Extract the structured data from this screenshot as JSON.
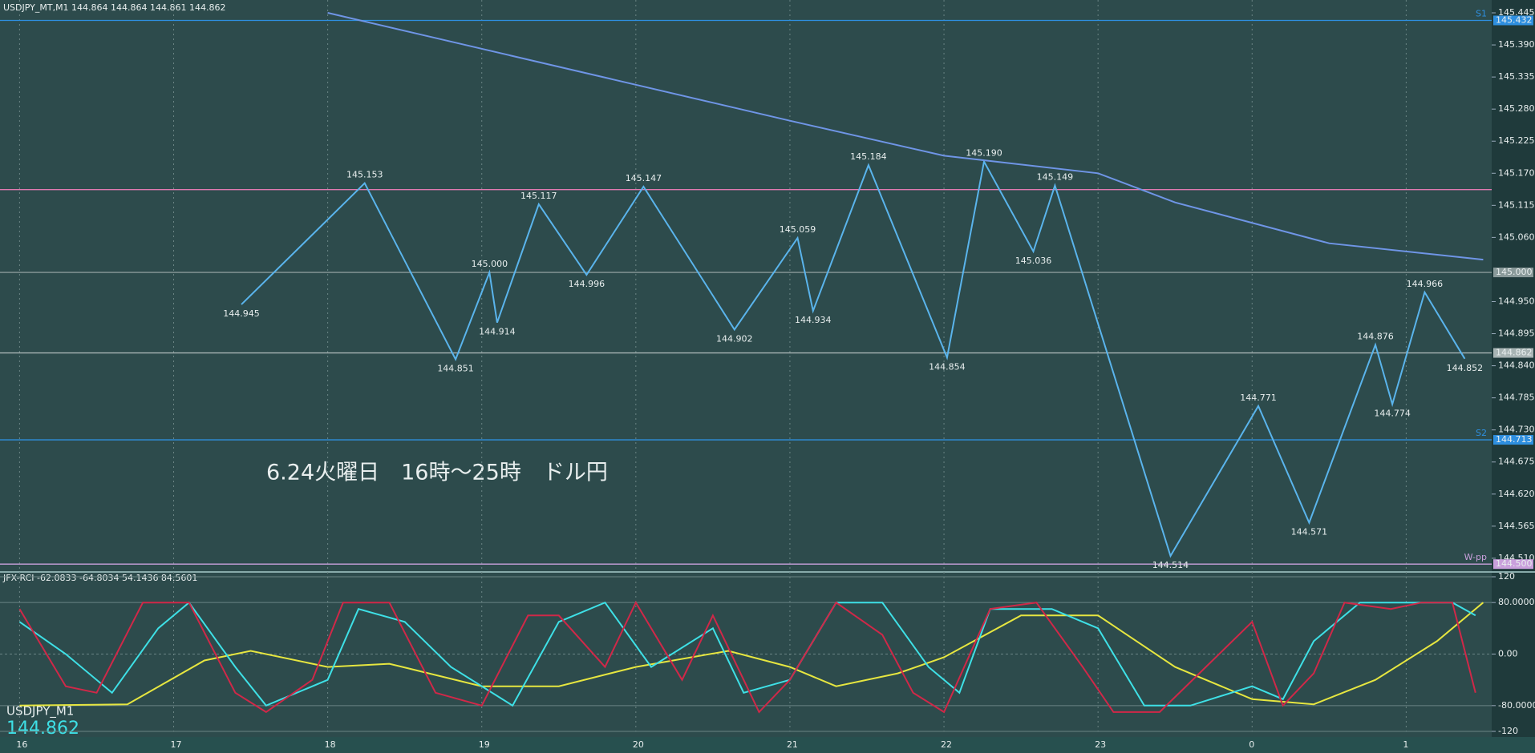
{
  "chart_data": [
    {
      "type": "line",
      "title": "USDJPY_MT,M1  144.864 144.864 144.861 144.862",
      "annotation": "6.24火曜日　16時～25時　ドル円",
      "xlim": [
        15.873,
        25.555
      ],
      "ylim": [
        144.492,
        145.467
      ],
      "xticks": [
        16,
        17,
        18,
        19,
        20,
        21,
        22,
        23,
        {
          "value": 24,
          "label": "0"
        },
        {
          "value": 25,
          "label": "1"
        }
      ],
      "yticks": [
        145.445,
        {
          "value": 145.39,
          "label": "145.390"
        },
        145.335,
        {
          "value": 145.28,
          "label": "145.280"
        },
        145.225,
        {
          "value": 145.17,
          "label": "145.170"
        },
        145.115,
        {
          "value": 145.06,
          "label": "145.060"
        },
        {
          "value": 144.95,
          "label": "144.950"
        },
        144.895,
        {
          "value": 144.84,
          "label": "144.840"
        },
        144.785,
        {
          "value": 144.73,
          "label": "144.730"
        },
        144.675,
        {
          "value": 144.62,
          "label": "144.620"
        },
        144.565,
        {
          "value": 144.51,
          "label": "144.510"
        }
      ],
      "grid": true,
      "series": [
        {
          "color": "#5ab4ec",
          "x": [
            17.44,
            18.24,
            18.83,
            19.05,
            19.1,
            19.37,
            19.68,
            20.05,
            20.64,
            21.05,
            21.15,
            21.51,
            22.02,
            22.26,
            22.58,
            22.72,
            23.47,
            24.04,
            24.37,
            24.8,
            24.91,
            25.12,
            25.38
          ],
          "values": [
            144.945,
            145.153,
            144.851,
            145.0,
            144.914,
            145.117,
            144.996,
            145.147,
            144.902,
            145.059,
            144.934,
            145.184,
            144.854,
            145.19,
            145.036,
            145.149,
            144.514,
            144.771,
            144.571,
            144.876,
            144.774,
            144.966,
            144.852
          ],
          "value_labels": [
            "144.945",
            "145.153",
            "144.851",
            "145.000",
            "144.914",
            "145.117",
            "144.996",
            "145.147",
            "144.902",
            "145.059",
            "144.934",
            "145.184",
            "144.854",
            "145.190",
            "145.036",
            "145.149",
            "144.514",
            "144.771",
            "144.571",
            "144.876",
            "144.774",
            "144.966",
            "144.852"
          ]
        },
        {
          "color": "#6f95e6",
          "x": [
            18.0,
            21.0,
            22.0,
            23.0,
            23.5,
            24.5,
            25.5
          ],
          "values": [
            145.445,
            145.26,
            145.2,
            145.17,
            145.12,
            145.05,
            145.022
          ]
        }
      ],
      "levels": [
        {
          "name": "S1",
          "value": 145.432,
          "color": "#2e8fe0",
          "tag": true
        },
        {
          "name": "S2",
          "value": 144.713,
          "color": "#2e8fe0",
          "tag": true
        },
        {
          "name": "W-pp",
          "value": 144.5,
          "value_label": "144.500",
          "color": "#c9a0dc",
          "tag": true
        },
        {
          "value": 145.0,
          "value_label": "145.000",
          "color": "#8a9a9a",
          "tag": true
        },
        {
          "value": 145.142,
          "color": "#e07ab0",
          "tag": false
        },
        {
          "value": 144.862,
          "color": "#a8b4b4",
          "tag": true
        }
      ]
    },
    {
      "type": "line",
      "title": "JFX-RCI -62.0833 -64.8034 54.1436 84.5601",
      "symbol": "USDJPY_M1",
      "price": 144.862,
      "xlim": [
        15.873,
        25.555
      ],
      "ylim": [
        -120,
        120
      ],
      "yticks": [
        120,
        {
          "value": 80,
          "label": "80.0000"
        },
        {
          "value": 0,
          "label": "0.00"
        },
        {
          "value": -80,
          "label": "-80.0000"
        },
        -120
      ],
      "series": [
        {
          "color": "#e6e640",
          "x": [
            16,
            16.7,
            17.2,
            17.5,
            18,
            18.4,
            19,
            19.5,
            20,
            20.6,
            21,
            21.3,
            21.7,
            22,
            22.5,
            23,
            23.5,
            24,
            24.4,
            24.8,
            25.2,
            25.5
          ],
          "values": [
            -80,
            -78,
            -10,
            5,
            -20,
            -15,
            -50,
            -50,
            -20,
            5,
            -20,
            -50,
            -30,
            -5,
            60,
            60,
            -20,
            -70,
            -78,
            -40,
            20,
            80
          ]
        },
        {
          "color": "#3ee0e6",
          "x": [
            16,
            16.3,
            16.6,
            16.9,
            17.1,
            17.4,
            17.6,
            18,
            18.2,
            18.5,
            18.8,
            19.2,
            19.5,
            19.8,
            20.1,
            20.5,
            20.7,
            21,
            21.3,
            21.6,
            21.9,
            22.1,
            22.3,
            22.7,
            23,
            23.3,
            23.6,
            24,
            24.2,
            24.4,
            24.7,
            25,
            25.3,
            25.45
          ],
          "values": [
            50,
            0,
            -60,
            40,
            80,
            -20,
            -80,
            -40,
            70,
            50,
            -20,
            -80,
            50,
            80,
            -20,
            40,
            -60,
            -40,
            80,
            80,
            -20,
            -60,
            70,
            70,
            40,
            -80,
            -80,
            -50,
            -70,
            20,
            80,
            80,
            80,
            60
          ]
        },
        {
          "color": "#d02848",
          "x": [
            16,
            16.3,
            16.5,
            16.8,
            17.1,
            17.4,
            17.6,
            17.9,
            18.1,
            18.4,
            18.7,
            19,
            19.3,
            19.5,
            19.8,
            20,
            20.3,
            20.5,
            20.8,
            21,
            21.3,
            21.6,
            21.8,
            22,
            22.3,
            22.6,
            22.9,
            23.1,
            23.4,
            23.7,
            24,
            24.2,
            24.4,
            24.6,
            24.9,
            25.1,
            25.3,
            25.45
          ],
          "values": [
            70,
            -50,
            -60,
            80,
            80,
            -60,
            -90,
            -40,
            80,
            80,
            -60,
            -80,
            60,
            60,
            -20,
            80,
            -40,
            60,
            -90,
            -40,
            80,
            30,
            -60,
            -90,
            70,
            80,
            -20,
            -90,
            -90,
            -20,
            50,
            -80,
            -30,
            80,
            70,
            80,
            80,
            -60
          ]
        }
      ]
    }
  ]
}
